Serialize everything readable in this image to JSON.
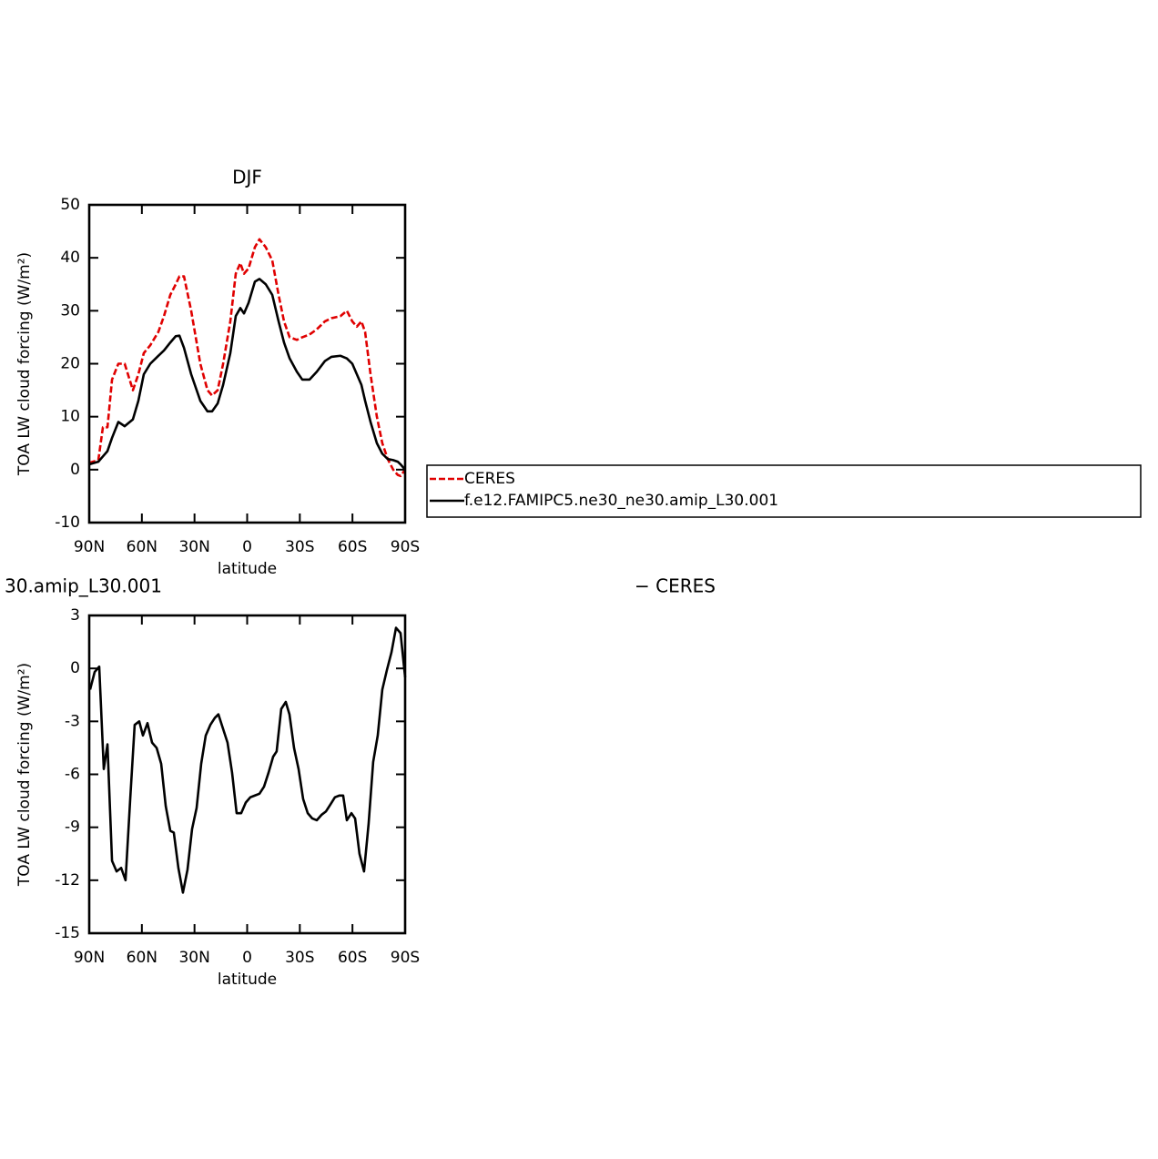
{
  "chart_data": [
    {
      "type": "line",
      "title": "DJF",
      "ylabel": "TOA LW cloud forcing (W/m²)",
      "xlabel": "latitude",
      "xlim": [
        90,
        -90
      ],
      "ylim": [
        -10,
        50
      ],
      "xticks": [
        {
          "value": 90,
          "label": "90N"
        },
        {
          "value": 60,
          "label": "60N"
        },
        {
          "value": 30,
          "label": "30N"
        },
        0,
        {
          "value": -30,
          "label": "30S"
        },
        {
          "value": -60,
          "label": "60S"
        },
        {
          "value": -90,
          "label": "90S"
        }
      ],
      "yticks": [
        -10,
        0,
        10,
        20,
        30,
        40,
        50
      ],
      "legend": "right",
      "x": [
        90,
        84.8,
        82.2,
        79.6,
        77.0,
        73.4,
        69.8,
        65.1,
        62.0,
        58.9,
        55.2,
        50.6,
        47.4,
        43.8,
        40.7,
        38.6,
        36.0,
        31.9,
        26.7,
        22.6,
        20.0,
        16.8,
        13.7,
        9.6,
        6.5,
        3.9,
        1.8,
        -0.8,
        -4.4,
        -7.0,
        -10.6,
        -14.3,
        -17.9,
        -21.0,
        -24.2,
        -28.3,
        -31.4,
        -35.5,
        -39.7,
        -44.3,
        -48.0,
        -53.2,
        -56.8,
        -59.9,
        -62.5,
        -65.1,
        -67.2,
        -70.3,
        -73.9,
        -77.0,
        -80.1,
        -83.2,
        -85.8,
        -87.4,
        -90
      ],
      "series": [
        {
          "name": "CERES",
          "color": "#e00000",
          "dash": "dashed",
          "values": [
            1.3,
            1.8,
            8,
            8,
            17,
            20,
            20,
            15,
            18,
            22,
            23.5,
            26,
            29,
            33,
            35,
            36.5,
            36.5,
            30,
            20,
            15,
            14,
            15,
            20,
            28,
            37,
            39,
            37,
            38,
            42,
            43.5,
            42,
            39.5,
            33,
            28,
            25,
            24.5,
            25,
            25.5,
            26.5,
            28,
            28.6,
            29,
            30,
            28,
            27,
            28,
            26,
            18,
            10,
            5,
            2,
            0,
            -1,
            -1.2,
            0
          ]
        },
        {
          "name": "f.e12.FAMIPC5.ne30_ne30.amip_L30.001",
          "color": "#000000",
          "dash": "solid",
          "values": [
            1.0,
            1.5,
            2.5,
            3.5,
            6,
            9,
            8.2,
            9.5,
            13,
            18,
            20,
            21.5,
            22.5,
            24,
            25.2,
            25.3,
            23,
            18,
            13,
            11,
            11,
            12.5,
            16,
            22,
            29,
            30.5,
            29.5,
            31.5,
            35.5,
            36,
            35,
            33,
            28,
            24,
            21,
            18.5,
            17,
            17,
            18.5,
            20.5,
            21.3,
            21.5,
            21,
            20,
            18,
            16,
            13,
            9,
            5,
            3,
            2,
            1.8,
            1.5,
            1,
            0
          ]
        }
      ]
    },
    {
      "type": "line",
      "title_parts": [
        "30.amip_L30.001",
        "− CERES"
      ],
      "ylabel": "TOA LW cloud forcing (W/m²)",
      "xlabel": "latitude",
      "xlim": [
        90,
        -90
      ],
      "ylim": [
        -15,
        3
      ],
      "xticks": [
        {
          "value": 90,
          "label": "90N"
        },
        {
          "value": 60,
          "label": "60N"
        },
        {
          "value": 30,
          "label": "30N"
        },
        0,
        {
          "value": -30,
          "label": "30S"
        },
        {
          "value": -60,
          "label": "60S"
        },
        {
          "value": -90,
          "label": "90S"
        }
      ],
      "yticks": [
        -15,
        -12,
        -9,
        -6,
        -3,
        0,
        3
      ],
      "x": [
        89.5,
        86.9,
        84.3,
        81.7,
        79.6,
        77.0,
        74.4,
        71.8,
        69.3,
        66.7,
        64.1,
        61.5,
        59.4,
        56.8,
        54.2,
        51.6,
        49.0,
        46.4,
        43.8,
        41.8,
        39.2,
        36.6,
        34.0,
        31.4,
        28.8,
        26.2,
        23.6,
        21.0,
        18.4,
        16.4,
        13.8,
        11.2,
        8.6,
        6.0,
        3.4,
        0.8,
        -1.8,
        -4.4,
        -7.0,
        -9.6,
        -12.2,
        -14.8,
        -16.8,
        -19.4,
        -22.0,
        -24.1,
        -26.7,
        -29.3,
        -31.9,
        -34.5,
        -37.1,
        -39.7,
        -42.3,
        -44.9,
        -47.5,
        -50.0,
        -52.6,
        -54.7,
        -56.8,
        -59.4,
        -61.5,
        -64.0,
        -66.6,
        -69.2,
        -71.8,
        -74.4,
        -77.0,
        -79.6,
        -82.2,
        -84.8,
        -87.4,
        -90
      ],
      "series": [
        {
          "color": "#000000",
          "dash": "solid",
          "values": [
            -1.2,
            -0.2,
            0.1,
            -5.7,
            -4.3,
            -10.9,
            -11.5,
            -11.3,
            -12.0,
            -7.5,
            -3.2,
            -3.0,
            -3.8,
            -3.1,
            -4.2,
            -4.5,
            -5.4,
            -7.8,
            -9.2,
            -9.3,
            -11.3,
            -12.7,
            -11.4,
            -9.1,
            -7.9,
            -5.4,
            -3.8,
            -3.2,
            -2.8,
            -2.6,
            -3.4,
            -4.2,
            -5.9,
            -8.2,
            -8.2,
            -7.6,
            -7.3,
            -7.2,
            -7.1,
            -6.7,
            -5.9,
            -5.0,
            -4.7,
            -2.3,
            -1.9,
            -2.6,
            -4.5,
            -5.7,
            -7.4,
            -8.2,
            -8.5,
            -8.6,
            -8.3,
            -8.1,
            -7.7,
            -7.3,
            -7.2,
            -7.2,
            -8.6,
            -8.2,
            -8.5,
            -10.5,
            -11.5,
            -8.8,
            -5.3,
            -3.8,
            -1.2,
            -0.1,
            0.9,
            2.3,
            2.0,
            -0.5
          ]
        }
      ]
    }
  ]
}
